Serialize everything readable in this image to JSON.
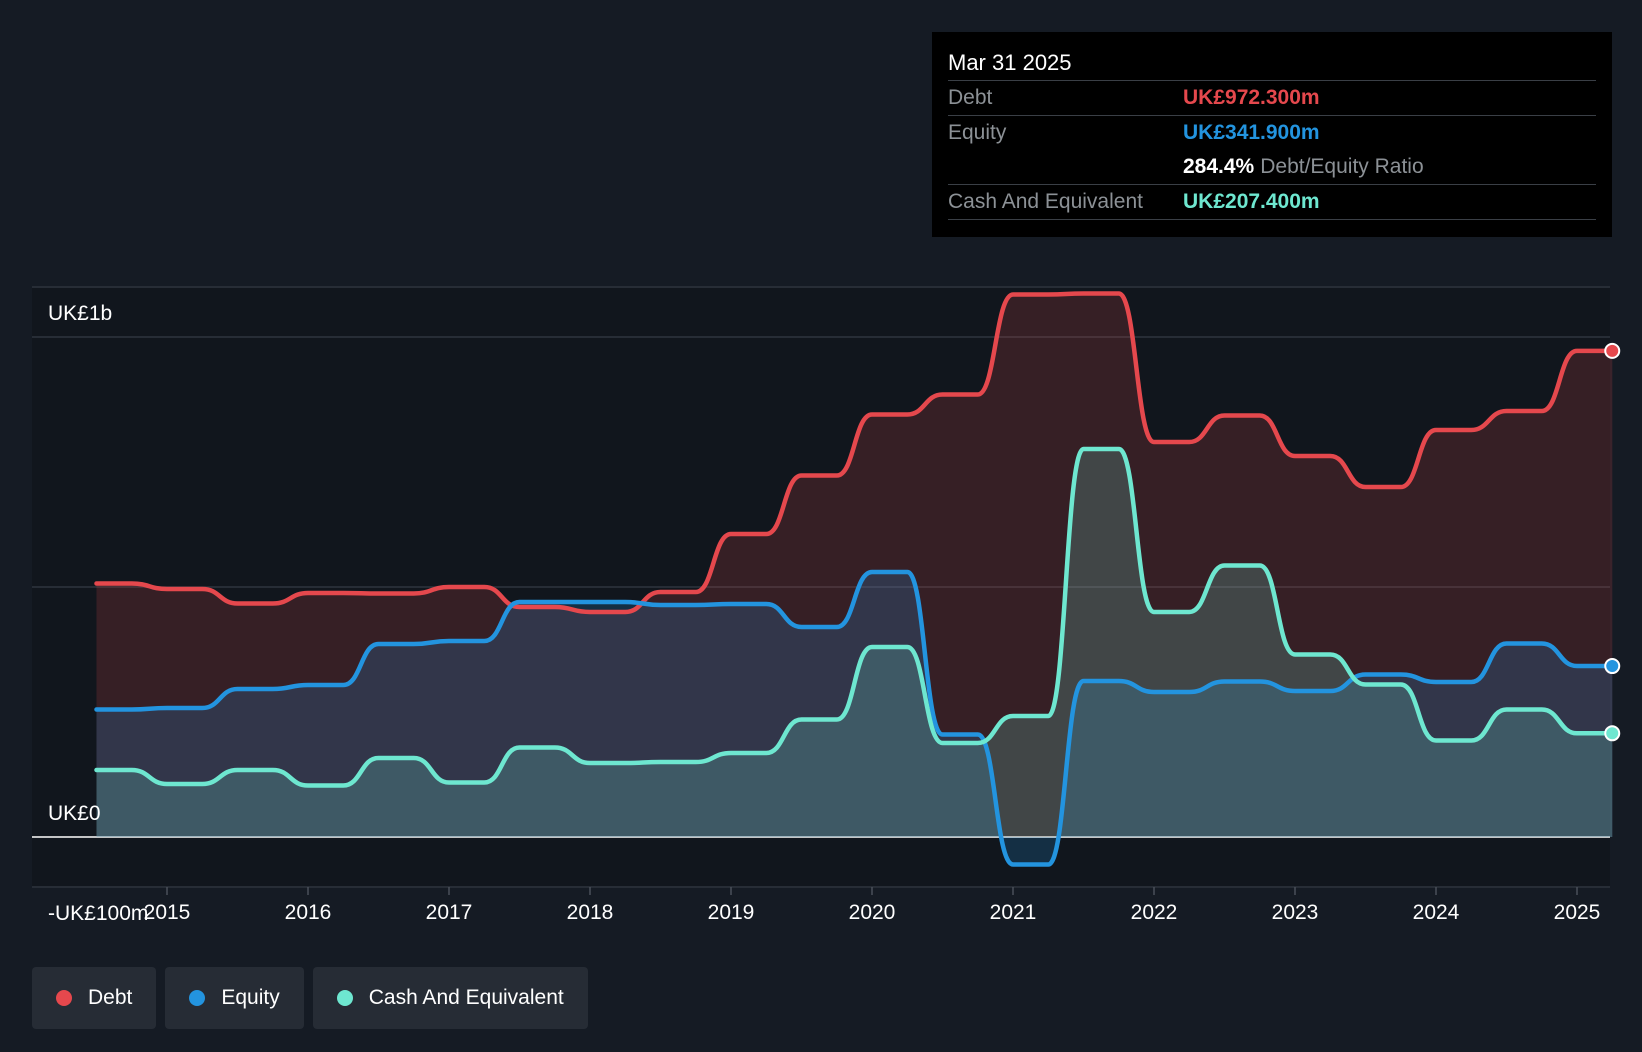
{
  "tooltip": {
    "date": "Mar 31 2025",
    "debt_label": "Debt",
    "debt_value": "UK£972.300m",
    "equity_label": "Equity",
    "equity_value": "UK£341.900m",
    "ratio_value": "284.4%",
    "ratio_label": "Debt/Equity Ratio",
    "cash_label": "Cash And Equivalent",
    "cash_value": "UK£207.400m"
  },
  "legend": [
    {
      "label": "Debt",
      "color": "#e5484d"
    },
    {
      "label": "Equity",
      "color": "#2394df"
    },
    {
      "label": "Cash And Equivalent",
      "color": "#6ee7d0"
    }
  ],
  "chart_data": {
    "type": "area",
    "y_tick_labels": [
      "UK£1b",
      "UK£0",
      "-UK£100m"
    ],
    "x_tick_labels": [
      "2015",
      "2016",
      "2017",
      "2018",
      "2019",
      "2020",
      "2021",
      "2022",
      "2023",
      "2024",
      "2025"
    ],
    "ylim": [
      -200,
      1100
    ],
    "xlim": [
      2014.5,
      2025.25
    ],
    "series": [
      {
        "name": "Debt",
        "color": "#e5484d",
        "x": [
          2014.5,
          2014.75,
          2015.0,
          2015.25,
          2015.5,
          2015.75,
          2016.0,
          2016.25,
          2016.5,
          2016.75,
          2017.0,
          2017.25,
          2017.5,
          2017.75,
          2018.0,
          2018.25,
          2018.5,
          2018.75,
          2019.0,
          2019.25,
          2019.5,
          2019.75,
          2020.0,
          2020.25,
          2020.5,
          2020.75,
          2021.0,
          2021.25,
          2021.5,
          2021.75,
          2022.0,
          2022.25,
          2022.5,
          2022.75,
          2023.0,
          2023.25,
          2023.5,
          2023.75,
          2024.0,
          2024.25,
          2024.5,
          2024.75,
          2025.0,
          2025.25
        ],
        "values": [
          507,
          507,
          496,
          496,
          467,
          467,
          488,
          488,
          487,
          487,
          500,
          500,
          460,
          460,
          450,
          450,
          490,
          490,
          606,
          606,
          723,
          723,
          845,
          845,
          885,
          885,
          1085,
          1085,
          1087,
          1087,
          790,
          790,
          843,
          843,
          762,
          762,
          700,
          700,
          814,
          814,
          852,
          852,
          972.3,
          972.3
        ]
      },
      {
        "name": "Equity",
        "color": "#2394df",
        "x": [
          2014.5,
          2014.75,
          2015.0,
          2015.25,
          2015.5,
          2015.75,
          2016.0,
          2016.25,
          2016.5,
          2016.75,
          2017.0,
          2017.25,
          2017.5,
          2017.75,
          2018.0,
          2018.25,
          2018.5,
          2018.75,
          2019.0,
          2019.25,
          2019.5,
          2019.75,
          2020.0,
          2020.25,
          2020.5,
          2020.75,
          2021.0,
          2021.25,
          2021.5,
          2021.75,
          2022.0,
          2022.25,
          2022.5,
          2022.75,
          2023.0,
          2023.25,
          2023.5,
          2023.75,
          2024.0,
          2024.25,
          2024.5,
          2024.75,
          2025.0,
          2025.25
        ],
        "values": [
          255,
          255,
          258,
          258,
          296,
          296,
          304,
          304,
          386,
          386,
          392,
          392,
          470,
          470,
          470,
          470,
          464,
          464,
          466,
          466,
          420,
          420,
          530,
          530,
          205,
          205,
          -55,
          -55,
          312,
          312,
          290,
          290,
          311,
          311,
          292,
          292,
          325,
          325,
          310,
          310,
          387,
          387,
          341.9,
          341.9
        ]
      },
      {
        "name": "Cash And Equivalent",
        "color": "#6ee7d0",
        "x": [
          2014.5,
          2014.75,
          2015.0,
          2015.25,
          2015.5,
          2015.75,
          2016.0,
          2016.25,
          2016.5,
          2016.75,
          2017.0,
          2017.25,
          2017.5,
          2017.75,
          2018.0,
          2018.25,
          2018.5,
          2018.75,
          2019.0,
          2019.25,
          2019.5,
          2019.75,
          2020.0,
          2020.25,
          2020.5,
          2020.75,
          2021.0,
          2021.25,
          2021.5,
          2021.75,
          2022.0,
          2022.25,
          2022.5,
          2022.75,
          2023.0,
          2023.25,
          2023.5,
          2023.75,
          2024.0,
          2024.25,
          2024.5,
          2024.75,
          2025.0,
          2025.25
        ],
        "values": [
          134,
          134,
          106,
          106,
          134,
          134,
          103,
          103,
          158,
          158,
          109,
          109,
          179,
          179,
          148,
          148,
          150,
          150,
          168,
          168,
          235,
          235,
          380,
          380,
          188,
          188,
          242,
          242,
          776,
          776,
          450,
          450,
          543,
          543,
          365,
          365,
          305,
          305,
          193,
          193,
          255,
          255,
          207.4,
          207.4
        ]
      }
    ]
  }
}
